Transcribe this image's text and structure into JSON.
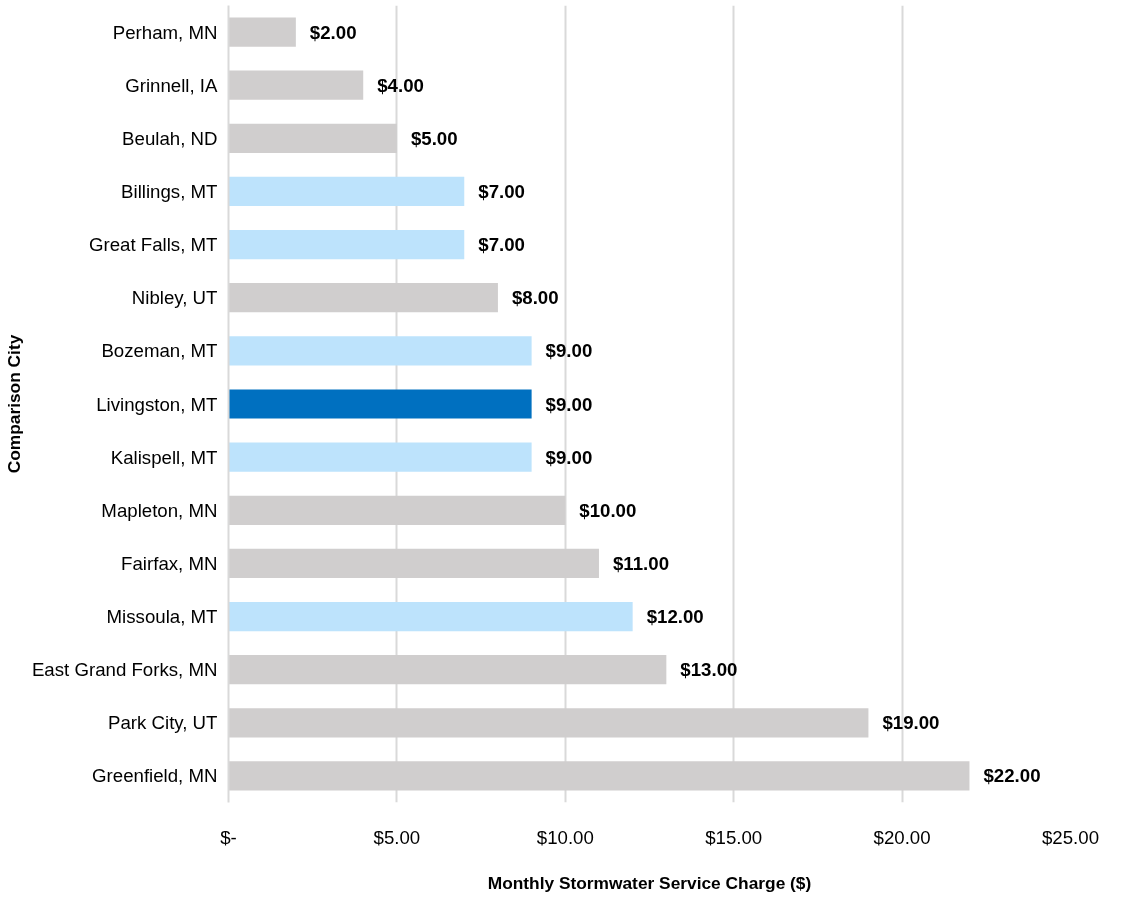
{
  "chart_data": {
    "type": "bar",
    "orientation": "horizontal",
    "xlabel": "Monthly Stormwater Service Charge ($)",
    "ylabel": "Comparison City",
    "categories": [
      "Perham, MN",
      "Grinnell, IA",
      "Beulah, ND",
      "Billings, MT",
      "Great Falls, MT",
      "Nibley, UT",
      "Bozeman, MT",
      "Livingston, MT",
      "Kalispell, MT",
      "Mapleton, MN",
      "Fairfax, MN",
      "Missoula, MT",
      "East Grand Forks, MN",
      "Park City, UT",
      "Greenfield, MN"
    ],
    "values": [
      2,
      4,
      5,
      7,
      7,
      8,
      9,
      9,
      9,
      10,
      11,
      12,
      13,
      19,
      22
    ],
    "colors": [
      "#d0cece",
      "#d0cece",
      "#d0cece",
      "#bde3fc",
      "#bde3fc",
      "#d0cece",
      "#bde3fc",
      "#0070c0",
      "#bde3fc",
      "#d0cece",
      "#d0cece",
      "#bde3fc",
      "#d0cece",
      "#d0cece",
      "#d0cece"
    ],
    "value_labels": [
      "$2.00",
      "$4.00",
      "$5.00",
      "$7.00",
      "$7.00",
      "$8.00",
      "$9.00",
      "$9.00",
      "$9.00",
      "$10.00",
      "$11.00",
      "$12.00",
      "$13.00",
      "$19.00",
      "$22.00"
    ],
    "xlim": [
      0,
      25
    ],
    "xticks": [
      {
        "value": 0,
        "label": "$-"
      },
      {
        "value": 5,
        "label": "$5.00"
      },
      {
        "value": 10,
        "label": "$10.00"
      },
      {
        "value": 15,
        "label": "$15.00"
      },
      {
        "value": 20,
        "label": "$20.00"
      },
      {
        "value": 25,
        "label": "$25.00"
      }
    ],
    "grid": "x"
  }
}
